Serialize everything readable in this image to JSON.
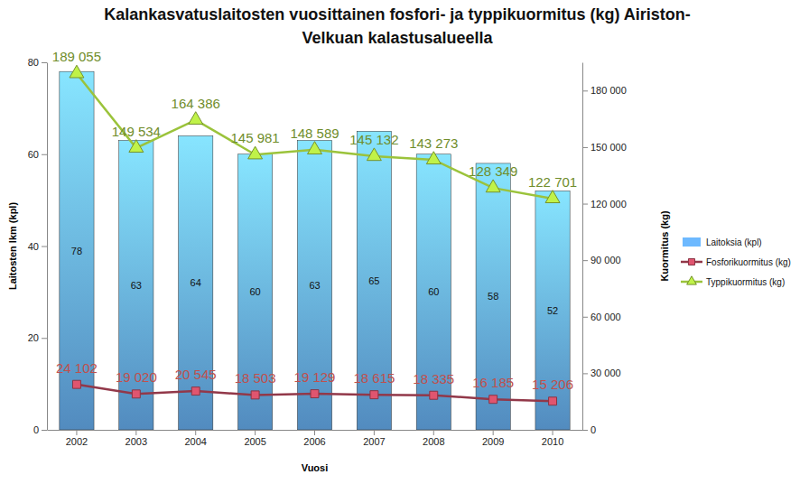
{
  "chart_data": {
    "type": "bar",
    "title": [
      "Kalankasvatuslaitosten vuosittainen fosfori- ja typpikuormitus (kg) Airiston-",
      "Velkuan kalastusalueella"
    ],
    "x_label": "Vuosi",
    "y_label": "Laitosten lkm (kpl)",
    "y2_label": "Kuormitus (kg)",
    "categories": [
      "2002",
      "2003",
      "2004",
      "2005",
      "2006",
      "2007",
      "2008",
      "2009",
      "2010"
    ],
    "ylim": [
      0,
      80
    ],
    "yticks": [
      0,
      20,
      40,
      60,
      80
    ],
    "y2lim": [
      0,
      195000
    ],
    "y2ticks": [
      0,
      {
        "value": 30000,
        "label": "30 000"
      },
      {
        "value": 60000,
        "label": "60 000"
      },
      {
        "value": 90000,
        "label": "90 000"
      },
      {
        "value": 120000,
        "label": "120 000"
      },
      {
        "value": 150000,
        "label": "150 000"
      },
      {
        "value": 180000,
        "label": "180 000"
      }
    ],
    "grid": false,
    "legend": "right",
    "data_labels": true,
    "series": [
      {
        "name": "Laitoksia (kpl)",
        "type": "bar",
        "color": "#5b9bd5",
        "values": [
          78,
          63,
          64,
          60,
          63,
          65,
          60,
          58,
          52
        ]
      },
      {
        "name": "Fosforikuormitus (kg)",
        "type": "line",
        "axis": "y2",
        "color": "#b5455a",
        "marker": "square",
        "values": [
          24102,
          19020,
          20545,
          18503,
          19129,
          18615,
          18335,
          16185,
          15206
        ],
        "value_labels": [
          "24 102",
          "19 020",
          "20 545",
          "18 503",
          "19 129",
          "18 615",
          "18 335",
          "16 185",
          "15 206"
        ]
      },
      {
        "name": "Typpikuormitus (kg)",
        "type": "line",
        "axis": "y2",
        "color": "#9bc33b",
        "marker": "triangle",
        "values": [
          189055,
          149534,
          164386,
          145981,
          148589,
          145132,
          143273,
          128349,
          122701
        ],
        "value_labels": [
          "189 055",
          "149 534",
          "164 386",
          "145 981",
          "148 589",
          "145 132",
          "143 273",
          "128 349",
          "122 701"
        ]
      }
    ]
  }
}
